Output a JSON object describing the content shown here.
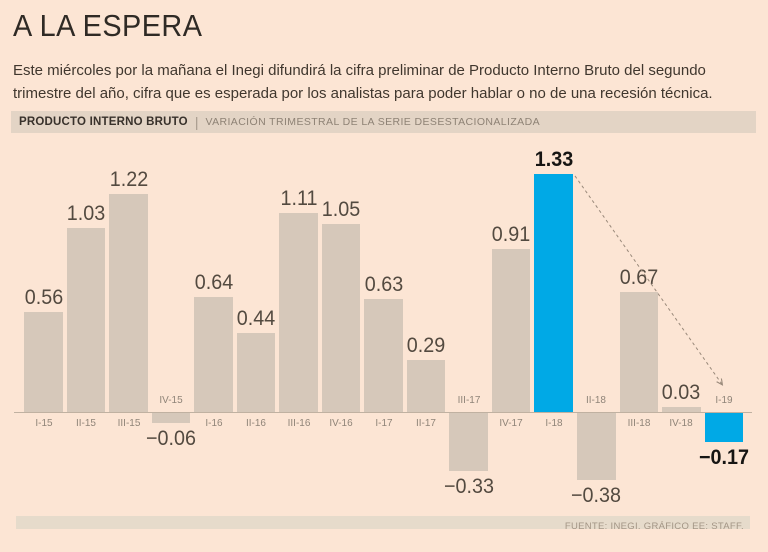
{
  "page": {
    "title": "A LA ESPERA",
    "subtitle_line1": "Este miércoles por la mañana el Inegi difundirá la cifra preliminar de Producto Interno Bruto del segundo",
    "subtitle_line2": "trimestre del año, cifra que es esperada por los analistas para poder hablar o no de una recesión técnica."
  },
  "chart_header": {
    "title": "PRODUCTO INTERNO BRUTO",
    "divider": "|",
    "subtitle": "VARIACIÓN TRIMESTRAL DE LA SERIE DESESTACIONALIZADA"
  },
  "chart_data": {
    "type": "bar",
    "title": "PRODUCTO INTERNO BRUTO",
    "subtitle": "VARIACIÓN TRIMESTRAL DE LA SERIE DESESTACIONALIZADA",
    "categories": [
      "I-15",
      "II-15",
      "III-15",
      "IV-15",
      "I-16",
      "II-16",
      "III-16",
      "IV-16",
      "I-17",
      "II-17",
      "III-17",
      "IV-17",
      "I-18",
      "II-18",
      "III-18",
      "IV-18",
      "I-19"
    ],
    "values": [
      0.56,
      1.03,
      1.22,
      -0.06,
      0.64,
      0.44,
      1.11,
      1.05,
      0.63,
      0.29,
      -0.33,
      0.91,
      1.33,
      -0.38,
      0.67,
      0.03,
      -0.17
    ],
    "highlighted_categories": [
      "I-18",
      "I-19"
    ],
    "ylim": [
      -0.5,
      1.4
    ],
    "grid": false,
    "legend": "none",
    "annotation_arrow": {
      "from_category": "I-18",
      "to_category": "I-19"
    }
  },
  "footer": {
    "source": "FUENTE: INEGI. GRÁFICO EE: STAFF."
  },
  "colors": {
    "background": "#fce5d4",
    "header_band": "#e3d4c5",
    "footer_strip": "#e6dbcb",
    "bar": "#d6c8ba",
    "highlight": "#00a9e6",
    "axis_line": "#c0b1a1",
    "value_label": "#534a40",
    "highlight_label": "#161513",
    "axis_label": "#8f8478",
    "arrow": "#99897a"
  }
}
